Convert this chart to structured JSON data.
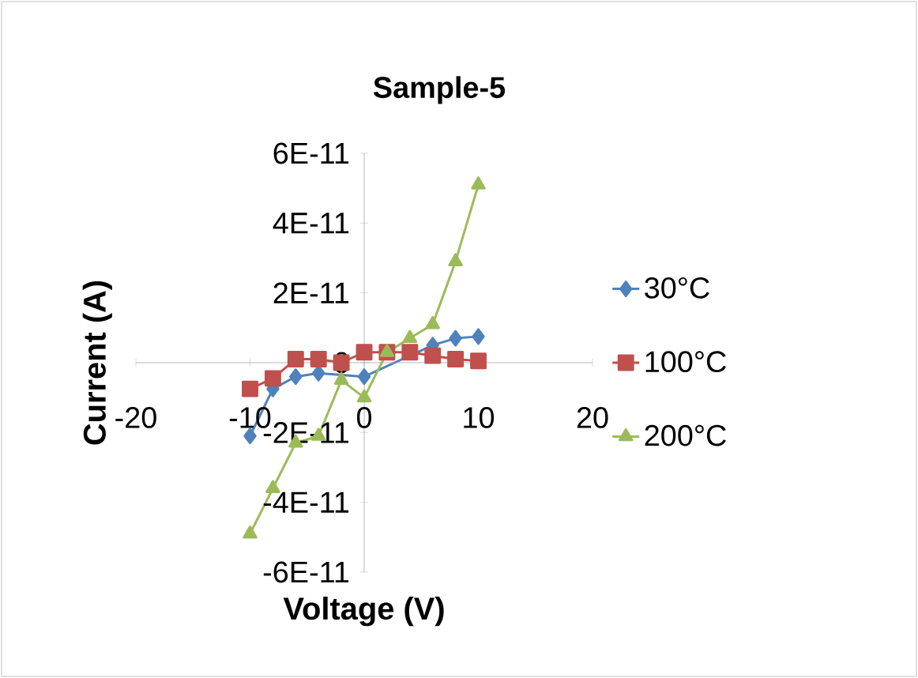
{
  "chart_data": {
    "type": "line",
    "title": "Sample-5",
    "xlabel": "Voltage (V)",
    "ylabel": "Current (A)",
    "x": [
      -10,
      -8,
      -6,
      -4,
      -2,
      0,
      2,
      4,
      6,
      8,
      10
    ],
    "series": [
      {
        "name": "30°C",
        "color": "#4f81bd",
        "marker": "diamond",
        "values": [
          -2.1e-11,
          -7.5e-12,
          -4e-12,
          -3e-12,
          null,
          -4e-12,
          null,
          null,
          5e-12,
          7e-12,
          7.5e-12
        ]
      },
      {
        "name": "100°C",
        "color": "#c0504d",
        "marker": "square",
        "values": [
          -7.5e-12,
          -4.5e-12,
          1e-12,
          1e-12,
          0.0,
          3e-12,
          3e-12,
          3e-12,
          2e-12,
          1e-12,
          5e-13
        ]
      },
      {
        "name": "200°C",
        "color": "#9bbb59",
        "marker": "triangle",
        "values": [
          -4.9e-11,
          -3.6e-11,
          -2.3e-11,
          -2.1e-11,
          -5e-12,
          -1e-11,
          3e-12,
          7e-12,
          1.1e-11,
          2.9e-11,
          5.1e-11
        ]
      }
    ],
    "xlim": [
      -20,
      20
    ],
    "xticks": [
      -20,
      -10,
      0,
      10,
      20
    ],
    "ylim": [
      -6e-11,
      6e-11
    ],
    "yticks": [
      {
        "value": -6e-11,
        "label": "-6E-11"
      },
      {
        "value": -4e-11,
        "label": "-4E-11"
      },
      {
        "value": -2e-11,
        "label": "-2E-11"
      },
      0,
      {
        "value": 2e-11,
        "label": "2E-11"
      },
      {
        "value": 4e-11,
        "label": "4E-11"
      },
      {
        "value": 6e-11,
        "label": "6E-11"
      }
    ],
    "legend": "right",
    "line_style": "solid",
    "grid": false
  }
}
